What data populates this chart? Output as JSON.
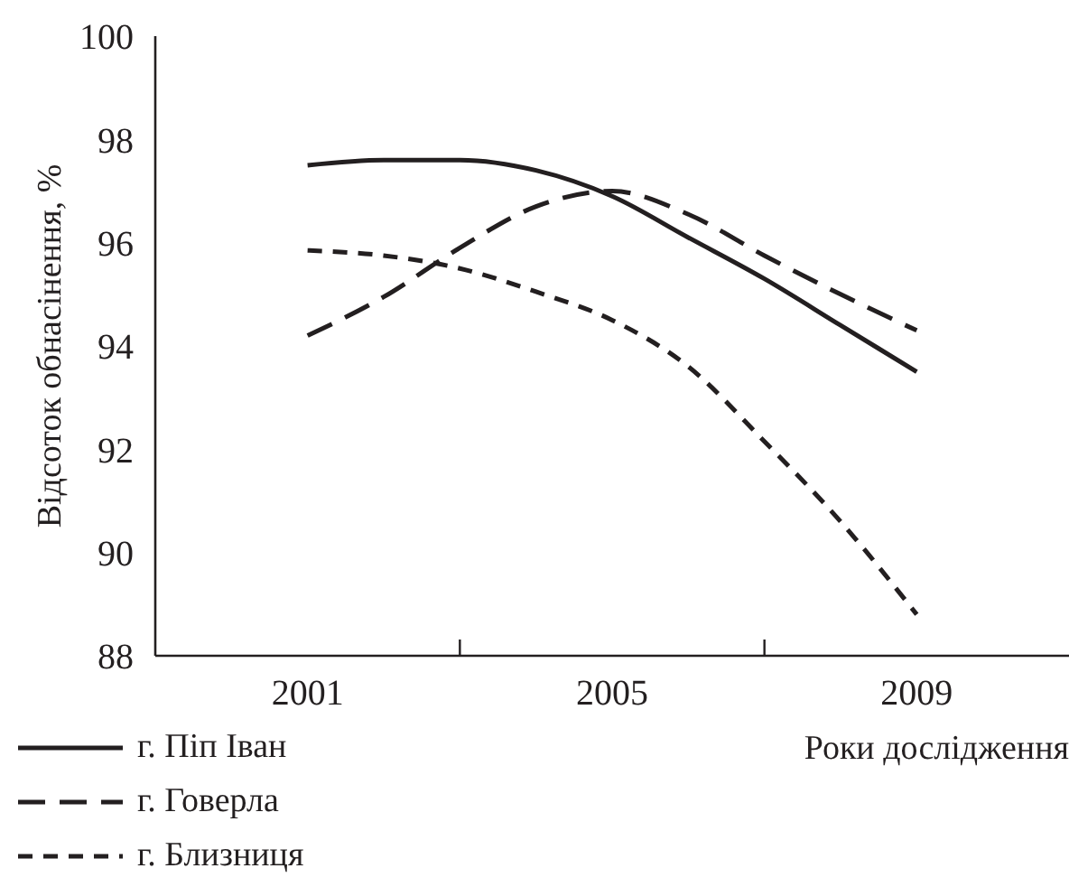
{
  "chart_data": {
    "type": "line",
    "xlabel": "Роки дослідження",
    "ylabel": "Відсоток обнасінення, %",
    "x": [
      2001,
      2002,
      2003,
      2004,
      2005,
      2006,
      2007,
      2008,
      2009
    ],
    "series": [
      {
        "name": "г. Піп Іван",
        "color": "#231f20",
        "line_style": "solid",
        "values": [
          97.5,
          97.6,
          97.6,
          97.4,
          96.9,
          96.1,
          95.3,
          94.4,
          93.5
        ]
      },
      {
        "name": "г. Говерла",
        "color": "#231f20",
        "line_style": "dashed",
        "values": [
          94.2,
          94.95,
          95.9,
          96.7,
          97.0,
          96.55,
          95.75,
          95.0,
          94.3
        ]
      },
      {
        "name": "г. Близниця",
        "color": "#231f20",
        "line_style": "dotted",
        "values": [
          95.85,
          95.75,
          95.5,
          95.05,
          94.5,
          93.6,
          92.15,
          90.6,
          88.8
        ]
      }
    ],
    "xlim": [
      1999,
      2011
    ],
    "xticks": [
      2001,
      {
        "value": 2003,
        "label": null
      },
      2005,
      {
        "value": 2007,
        "label": null
      },
      2009
    ],
    "ylim": [
      88,
      100
    ],
    "yticks": [
      88,
      90,
      92,
      94,
      96,
      98,
      100
    ],
    "grid": false,
    "legend": "bottom left",
    "marker": "none"
  }
}
